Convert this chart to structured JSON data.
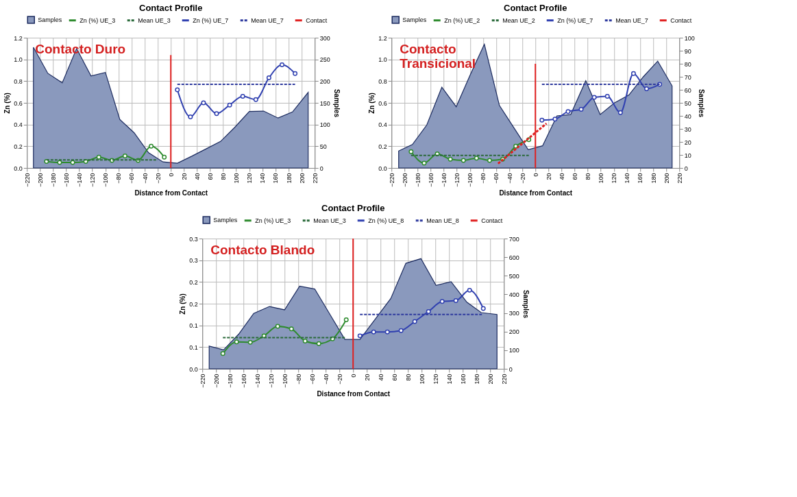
{
  "chart_data": [
    {
      "type": "line",
      "title": "Contact Profile",
      "xlabel": "Distance from Contact",
      "ylabel": "Zn (%)",
      "y2label": "Samples",
      "legend": "top",
      "grid": true,
      "xlim": [
        -220,
        220
      ],
      "xticks": [
        -220,
        -200,
        -180,
        -160,
        -140,
        -120,
        -100,
        -80,
        -60,
        -40,
        -20,
        0,
        20,
        40,
        60,
        80,
        100,
        120,
        140,
        160,
        180,
        200,
        220
      ],
      "ylim": [
        0,
        1.2
      ],
      "yticks": [
        {
          "value": 0,
          "label": "0.0"
        },
        {
          "value": 0.2,
          "label": "0.2"
        },
        {
          "value": 0.4,
          "label": "0.4"
        },
        {
          "value": 0.6,
          "label": "0.6"
        },
        {
          "value": 0.8,
          "label": "0.8"
        },
        {
          "value": 1,
          "label": "1.0"
        },
        {
          "value": 1.2,
          "label": "1.2"
        }
      ],
      "y2lim": [
        0,
        300
      ],
      "y2ticks": [
        0,
        50,
        100,
        150,
        200,
        250,
        300
      ],
      "annotations": [
        "Contacto Duro"
      ],
      "series": [
        {
          "name": "Samples",
          "type": "area",
          "axis": "y2",
          "color": "#8a99bd",
          "x": [
            -210,
            -188,
            -166,
            -144,
            -122,
            -100,
            -78,
            -56,
            -34,
            -12,
            10,
            32,
            54,
            76,
            98,
            120,
            142,
            164,
            186,
            210
          ],
          "values": [
            278,
            218,
            196,
            275,
            212,
            220,
            112,
            81,
            35,
            14,
            11,
            27,
            44,
            61,
            94,
            130,
            131,
            115,
            129,
            174
          ]
        },
        {
          "name": "Zn (%) UE_3",
          "color": "#2e8b2e",
          "marker": "circle",
          "x": [
            -190,
            -170,
            -150,
            -130,
            -110,
            -90,
            -70,
            -50,
            -30,
            -10
          ],
          "values": [
            0.06,
            0.05,
            0.05,
            0.06,
            0.1,
            0.07,
            0.11,
            0.07,
            0.2,
            0.1
          ]
        },
        {
          "name": "Mean UE_3",
          "color": "#2a6a3a",
          "line_style": "dashed",
          "x": [
            -190,
            -20
          ],
          "values": [
            0.075,
            0.075
          ]
        },
        {
          "name": "Zn (%) UE_7",
          "color": "#3040b0",
          "marker": "circle",
          "x": [
            10,
            30,
            50,
            70,
            90,
            110,
            130,
            150,
            170,
            190
          ],
          "values": [
            0.72,
            0.47,
            0.6,
            0.5,
            0.58,
            0.66,
            0.63,
            0.83,
            0.95,
            0.87
          ]
        },
        {
          "name": "Mean UE_7",
          "color": "#2e3a9e",
          "line_style": "dashed",
          "x": [
            10,
            190
          ],
          "values": [
            0.77,
            0.77
          ]
        },
        {
          "name": "Contact",
          "color": "#e02020",
          "x": [
            0,
            0
          ],
          "values": [
            0,
            1.04
          ]
        }
      ]
    },
    {
      "type": "line",
      "title": "Contact Profile",
      "xlabel": "Distance from Contact",
      "ylabel": "Zn (%)",
      "y2label": "Samples",
      "legend": "top",
      "grid": true,
      "xlim": [
        -220,
        220
      ],
      "xticks": [
        -220,
        -200,
        -180,
        -160,
        -140,
        -120,
        -100,
        -80,
        -60,
        -40,
        -20,
        0,
        20,
        40,
        60,
        80,
        100,
        120,
        140,
        160,
        180,
        200,
        220
      ],
      "ylim": [
        0,
        1.2
      ],
      "yticks": [
        {
          "value": 0,
          "label": "0.0"
        },
        {
          "value": 0.2,
          "label": "0.2"
        },
        {
          "value": 0.4,
          "label": "0.4"
        },
        {
          "value": 0.6,
          "label": "0.6"
        },
        {
          "value": 0.8,
          "label": "0.8"
        },
        {
          "value": 1,
          "label": "1.0"
        },
        {
          "value": 1.2,
          "label": "1.2"
        }
      ],
      "y2lim": [
        0,
        100
      ],
      "y2ticks": [
        0,
        10,
        20,
        30,
        40,
        50,
        60,
        70,
        80,
        90,
        100
      ],
      "annotations": [
        "Contacto\nTransicional"
      ],
      "series": [
        {
          "name": "Samples",
          "type": "area",
          "axis": "y2",
          "color": "#8a99bd",
          "x": [
            -209,
            -188,
            -166,
            -143,
            -121,
            -100,
            -78,
            -55,
            -33,
            -11,
            11,
            33,
            54,
            77,
            99,
            121,
            143,
            165,
            187,
            209
          ],
          "values": [
            13,
            18,
            33,
            62,
            47,
            71,
            95,
            48,
            31,
            14,
            17,
            40,
            41,
            67,
            41,
            50,
            56,
            70,
            82,
            63
          ]
        },
        {
          "name": "Zn (%) UE_2",
          "color": "#2e8b2e",
          "marker": "circle",
          "x": [
            -190,
            -170,
            -150,
            -130,
            -110,
            -90,
            -70,
            -50,
            -30,
            -10
          ],
          "values": [
            0.15,
            0.045,
            0.13,
            0.08,
            0.07,
            0.09,
            0.07,
            0.08,
            0.2,
            0.26
          ]
        },
        {
          "name": "Mean UE_2",
          "color": "#2a6a3a",
          "line_style": "dashed",
          "x": [
            -190,
            -10
          ],
          "values": [
            0.115,
            0.115
          ]
        },
        {
          "name": "Zn (%) UE_7",
          "color": "#3040b0",
          "marker": "circle",
          "x": [
            10,
            30,
            50,
            70,
            90,
            110,
            130,
            150,
            170,
            190
          ],
          "values": [
            0.44,
            0.45,
            0.52,
            0.54,
            0.65,
            0.66,
            0.51,
            0.87,
            0.73,
            0.77
          ]
        },
        {
          "name": "Mean UE_7",
          "color": "#2e3a9e",
          "line_style": "dashed",
          "x": [
            10,
            190
          ],
          "values": [
            0.77,
            0.77
          ]
        },
        {
          "name": "Contact",
          "color": "#e02020",
          "x": [
            0,
            0
          ],
          "values": [
            0,
            0.96
          ]
        },
        {
          "color": "#e02020",
          "line_style": "dashed",
          "x": [
            -57,
            17
          ],
          "values": [
            0.04,
            0.41
          ]
        }
      ]
    },
    {
      "type": "line",
      "title": "Contact Profile",
      "xlabel": "Distance from Contact",
      "ylabel": "Zn (%)",
      "y2label": "Samples",
      "legend": "top",
      "grid": true,
      "xlim": [
        -220,
        220
      ],
      "xticks": [
        -220,
        -200,
        -180,
        -160,
        -140,
        -120,
        -100,
        -80,
        -60,
        -40,
        -20,
        0,
        20,
        40,
        60,
        80,
        100,
        120,
        140,
        160,
        180,
        200,
        220
      ],
      "ylim": [
        0,
        0.3
      ],
      "yticks": [
        {
          "value": 0,
          "label": "0.0"
        },
        {
          "value": 0.05,
          "label": "0.1"
        },
        {
          "value": 0.1,
          "label": "0.1"
        },
        {
          "value": 0.15,
          "label": "0.2"
        },
        {
          "value": 0.2,
          "label": "0.2"
        },
        {
          "value": 0.25,
          "label": "0.3"
        },
        {
          "value": 0.3,
          "label": "0.3"
        }
      ],
      "y2lim": [
        0,
        700
      ],
      "y2ticks": [
        0,
        100,
        200,
        300,
        400,
        500,
        600,
        700
      ],
      "annotations": [
        "Contacto Blando"
      ],
      "series": [
        {
          "name": "Samples",
          "type": "area",
          "axis": "y2",
          "color": "#8a99bd",
          "x": [
            -210,
            -189,
            -167,
            -145,
            -122,
            -100,
            -78,
            -56,
            -34,
            -12,
            10,
            33,
            55,
            77,
            99,
            121,
            143,
            166,
            187,
            210
          ],
          "values": [
            122,
            102,
            186,
            298,
            335,
            317,
            444,
            429,
            294,
            158,
            158,
            270,
            378,
            567,
            592,
            448,
            468,
            358,
            302,
            292
          ]
        },
        {
          "name": "Zn (%) UE_3",
          "color": "#2e8b2e",
          "marker": "circle",
          "x": [
            -190,
            -170,
            -150,
            -130,
            -110,
            -90,
            -70,
            -50,
            -30,
            -10
          ],
          "values": [
            0.035,
            0.062,
            0.061,
            0.076,
            0.098,
            0.092,
            0.064,
            0.058,
            0.069,
            0.113
          ]
        },
        {
          "name": "Mean UE_3",
          "color": "#2a6a3a",
          "line_style": "dashed",
          "x": [
            -190,
            -10
          ],
          "values": [
            0.072,
            0.072
          ]
        },
        {
          "name": "Zn (%) UE_8",
          "color": "#3040b0",
          "marker": "circle",
          "x": [
            10,
            30,
            50,
            70,
            90,
            110,
            130,
            150,
            170,
            190
          ],
          "values": [
            0.076,
            0.085,
            0.085,
            0.088,
            0.109,
            0.132,
            0.155,
            0.157,
            0.181,
            0.139
          ]
        },
        {
          "name": "Mean UE_8",
          "color": "#2e3a9e",
          "line_style": "dashed",
          "x": [
            10,
            190
          ],
          "values": [
            0.125,
            0.125
          ]
        },
        {
          "name": "Contact",
          "color": "#e02020",
          "x": [
            0,
            0
          ],
          "values": [
            0,
            0.3
          ]
        }
      ]
    }
  ]
}
